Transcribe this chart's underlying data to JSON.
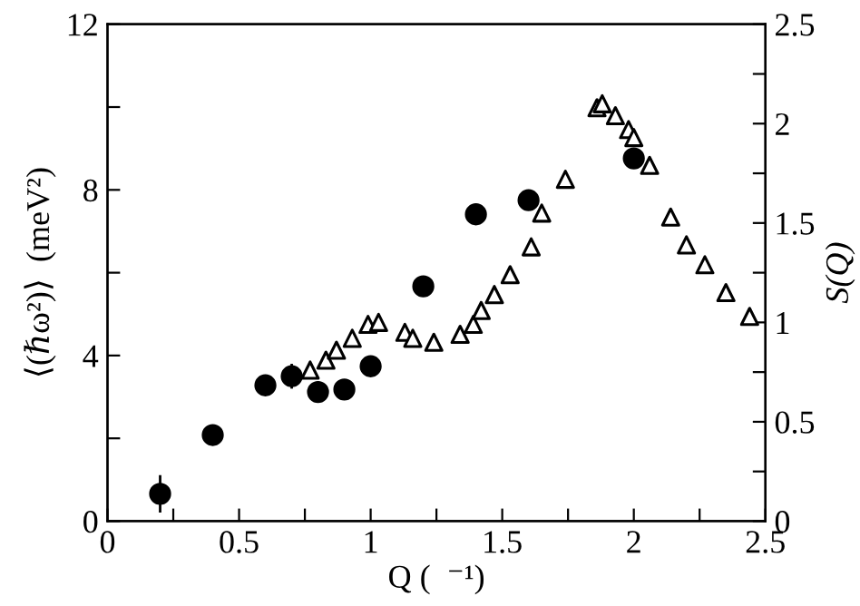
{
  "chart_data": {
    "type": "scatter",
    "xlabel": "Q (  ⁻¹)",
    "ylabel": "⟨(ℏω²)⟩  (meV²)",
    "y2label": "S(Q)",
    "xlim": [
      0,
      2.5
    ],
    "ylim": [
      0,
      12
    ],
    "y2lim": [
      0,
      2.5
    ],
    "xticks": [
      0,
      {
        "value": 0.25,
        "label": null
      },
      0.5,
      {
        "value": 0.75,
        "label": null
      },
      1,
      {
        "value": 1.25,
        "label": null
      },
      1.5,
      {
        "value": 1.75,
        "label": null
      },
      2,
      {
        "value": 2.25,
        "label": null
      },
      2.5
    ],
    "yticks": [
      0,
      {
        "value": 2,
        "label": null
      },
      4,
      {
        "value": 6,
        "label": null
      },
      8,
      {
        "value": 10,
        "label": null
      },
      12
    ],
    "y2ticks": [
      0,
      {
        "value": 0.25,
        "label": null
      },
      0.5,
      {
        "value": 0.75,
        "label": null
      },
      1,
      {
        "value": 1.25,
        "label": null
      },
      1.5,
      {
        "value": 1.75,
        "label": null
      },
      2,
      {
        "value": 2.25,
        "label": null
      },
      2.5
    ],
    "grid": false,
    "series": [
      {
        "color": "#000000",
        "marker": "circle",
        "axis": "y",
        "x": [
          0.2,
          0.4,
          0.6,
          0.7,
          0.8,
          0.9,
          1.0,
          1.2,
          1.4,
          1.6,
          2.0
        ],
        "values": [
          0.66,
          2.08,
          3.28,
          3.5,
          3.12,
          3.18,
          3.74,
          5.67,
          7.41,
          7.75,
          8.76
        ],
        "errors": [
          0.45,
          0.15,
          0.2,
          0.3,
          0.25,
          0.2,
          0.15,
          0.25,
          0.25,
          0.15,
          0.15
        ]
      },
      {
        "color": "#000000",
        "marker": "triangle",
        "axis": "y2",
        "x": [
          0.77,
          0.83,
          0.87,
          0.93,
          0.99,
          1.03,
          1.13,
          1.16,
          1.24,
          1.34,
          1.39,
          1.42,
          1.47,
          1.53,
          1.61,
          1.65,
          1.74,
          1.86,
          1.88,
          1.93,
          1.98,
          2.0,
          2.06,
          2.14,
          2.2,
          2.27,
          2.35,
          2.44
        ],
        "values": [
          0.76,
          0.81,
          0.86,
          0.92,
          0.99,
          1.0,
          0.95,
          0.92,
          0.9,
          0.94,
          0.99,
          1.06,
          1.14,
          1.24,
          1.38,
          1.55,
          1.72,
          2.08,
          2.1,
          2.04,
          1.97,
          1.93,
          1.79,
          1.53,
          1.39,
          1.29,
          1.15,
          1.03
        ]
      }
    ]
  }
}
